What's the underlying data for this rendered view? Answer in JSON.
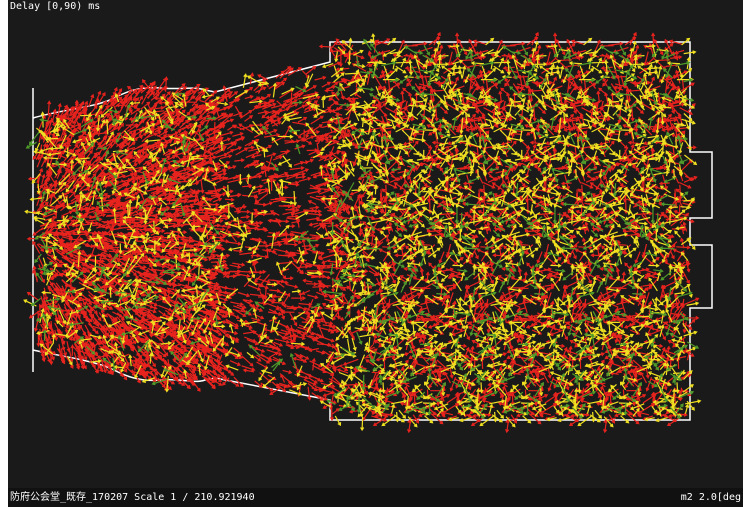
{
  "header": {
    "title": "Delay [0,90) ms"
  },
  "status_bar": {
    "left": "防府公会堂_既存_170207 Scale 1 / 210.921940",
    "right": "m2  2.0[deg"
  }
}
